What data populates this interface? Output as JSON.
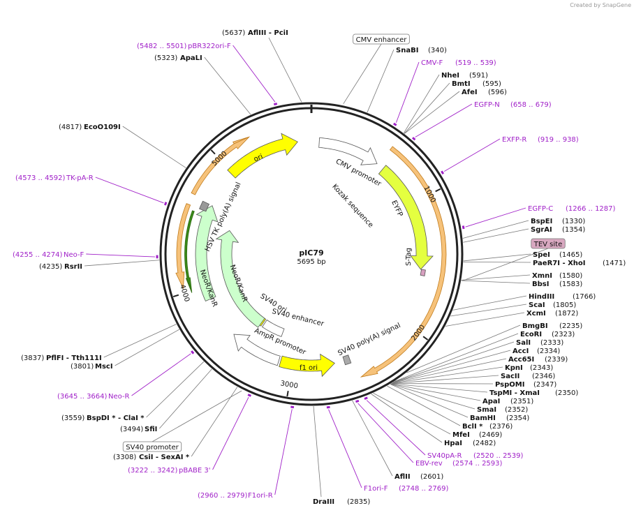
{
  "attribution": "Created by SnapGene",
  "plasmid": {
    "name": "pIC79",
    "length": "5695 bp"
  },
  "ticks": [
    "1000",
    "2000",
    "3000",
    "4000",
    "5000"
  ],
  "enzymes": [
    {
      "name": "SnaBI",
      "site": "(340)"
    },
    {
      "name": "NheI",
      "site": "(591)"
    },
    {
      "name": "BmtI",
      "site": "(595)"
    },
    {
      "name": "AfeI",
      "site": "(596)"
    },
    {
      "name": "BspEI",
      "site": "(1330)"
    },
    {
      "name": "SgrAI",
      "site": "(1354)"
    },
    {
      "name": "SpeI",
      "site": "(1465)"
    },
    {
      "name": "PaeR7I  -  XhoI",
      "site": "(1471)"
    },
    {
      "name": "XmnI",
      "site": "(1580)"
    },
    {
      "name": "BbsI",
      "site": "(1583)"
    },
    {
      "name": "HindIII",
      "site": "(1766)"
    },
    {
      "name": "ScaI",
      "site": "(1805)"
    },
    {
      "name": "XcmI",
      "site": "(1872)"
    },
    {
      "name": "BmgBI",
      "site": "(2235)"
    },
    {
      "name": "EcoRI",
      "site": "(2323)"
    },
    {
      "name": "SalI",
      "site": "(2333)"
    },
    {
      "name": "AccI",
      "site": "(2334)"
    },
    {
      "name": "Acc65I",
      "site": "(2339)"
    },
    {
      "name": "KpnI",
      "site": "(2343)"
    },
    {
      "name": "SacII",
      "site": "(2346)"
    },
    {
      "name": "PspOMI",
      "site": "(2347)"
    },
    {
      "name": "TspMI  -  XmaI",
      "site": "(2350)"
    },
    {
      "name": "ApaI",
      "site": "(2351)"
    },
    {
      "name": "SmaI",
      "site": "(2352)"
    },
    {
      "name": "BamHI",
      "site": "(2354)"
    },
    {
      "name": "BclI *",
      "site": "(2376)"
    },
    {
      "name": "MfeI",
      "site": "(2469)"
    },
    {
      "name": "HpaI",
      "site": "(2482)"
    },
    {
      "name": "AflII",
      "site": "(2601)"
    },
    {
      "name": "DraIII",
      "site": "(2835)"
    },
    {
      "name": "BspDI *  -  ClaI *",
      "site": "(3559)"
    },
    {
      "name": "SfiI",
      "site": "(3494)"
    },
    {
      "name": "CsiI  -  SexAI *",
      "site": "(3308)"
    },
    {
      "name": "PflFI  -  Tth111I",
      "site": "(3837)"
    },
    {
      "name": "MscI",
      "site": "(3801)"
    },
    {
      "name": "RsrII",
      "site": "(4235)"
    },
    {
      "name": "EcoO109I",
      "site": "(4817)"
    },
    {
      "name": "ApaLI",
      "site": "(5323)"
    },
    {
      "name": "AflIII  -  PciI",
      "site": "(5637)"
    }
  ],
  "primers": [
    {
      "name": "CMV-F",
      "range": "(519 .. 539)"
    },
    {
      "name": "EGFP-N",
      "range": "(658 .. 679)"
    },
    {
      "name": "EXFP-R",
      "range": "(919 .. 938)"
    },
    {
      "name": "EGFP-C",
      "range": "(1266 .. 1287)"
    },
    {
      "name": "SV40pA-R",
      "range": "(2520 .. 2539)"
    },
    {
      "name": "EBV-rev",
      "range": "(2574 .. 2593)"
    },
    {
      "name": "F1ori-F",
      "range": "(2748 .. 2769)"
    },
    {
      "name": "F1ori-R",
      "range": "(2960 .. 2979)"
    },
    {
      "name": "pBABE 3'",
      "range": "(3222 .. 3242)"
    },
    {
      "name": "Neo-R",
      "range": "(3645 .. 3664)"
    },
    {
      "name": "Neo-F",
      "range": "(4255 .. 4274)"
    },
    {
      "name": "TK-pA-R",
      "range": "(4573 .. 4592)"
    },
    {
      "name": "pBR322ori-F",
      "range": "(5482 .. 5501)"
    }
  ],
  "boxed_features": [
    "CMV enhancer",
    "TEV site",
    "SV40 promoter"
  ],
  "features": [
    "ori",
    "CMV promoter",
    "Kozak sequence",
    "EYFP",
    "S-Tag",
    "HSV TK poly(A) signal",
    "NeoR/KanR",
    "NeoR/KanR",
    "SV40 ori",
    "SV40 enhancer",
    "AmpR promoter",
    "f1 ori",
    "SV40 poly(A) signal"
  ]
}
